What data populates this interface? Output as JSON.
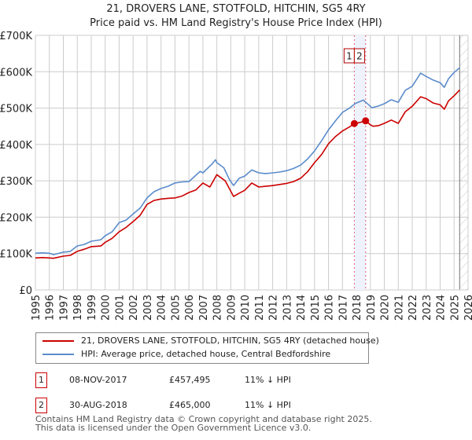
{
  "header": {
    "title": "21, DROVERS LANE, STOTFOLD, HITCHIN, SG5 4RY",
    "subtitle": "Price paid vs. HM Land Registry's House Price Index (HPI)"
  },
  "colors": {
    "property": "#cc0000",
    "hpi": "#5b8ccc",
    "sale_band": "#eef3fb",
    "sale_line": "#e06070",
    "grid": "#cccccc"
  },
  "chart_data": {
    "type": "line",
    "title": "21, DROVERS LANE, STOTFOLD, HITCHIN, SG5 4RY",
    "subtitle": "Price paid vs. HM Land Registry's House Price Index (HPI)",
    "xlabel": "",
    "ylabel": "",
    "xlim": [
      1995,
      2026
    ],
    "ylim": [
      0,
      700000
    ],
    "grid": true,
    "legend_position": "below",
    "x_ticks": [
      "1995",
      "1996",
      "1997",
      "1998",
      "1999",
      "2000",
      "2001",
      "2002",
      "2003",
      "2004",
      "2005",
      "2006",
      "2007",
      "2008",
      "2009",
      "2010",
      "2011",
      "2012",
      "2013",
      "2014",
      "2015",
      "2016",
      "2017",
      "2018",
      "2019",
      "2020",
      "2021",
      "2022",
      "2023",
      "2024",
      "2025",
      "2026"
    ],
    "y_ticks": [
      {
        "value": 0,
        "label": "£0"
      },
      {
        "value": 100000,
        "label": "£100K"
      },
      {
        "value": 200000,
        "label": "£200K"
      },
      {
        "value": 300000,
        "label": "£300K"
      },
      {
        "value": 400000,
        "label": "£400K"
      },
      {
        "value": 500000,
        "label": "£500K"
      },
      {
        "value": 600000,
        "label": "£600K"
      },
      {
        "value": 700000,
        "label": "£700K"
      }
    ],
    "data_end": 2025.4,
    "series": [
      {
        "name": "21, DROVERS LANE, STOTFOLD, HITCHIN, SG5 4RY (detached house)",
        "color": "#cc0000",
        "points": [
          [
            1995.0,
            88000
          ],
          [
            1995.5,
            89000
          ],
          [
            1996.0,
            88000
          ],
          [
            1996.3,
            87000
          ],
          [
            1997.0,
            93000
          ],
          [
            1997.5,
            95000
          ],
          [
            1998.0,
            106000
          ],
          [
            1998.5,
            112000
          ],
          [
            1999.0,
            119000
          ],
          [
            1999.7,
            121000
          ],
          [
            2000.0,
            131000
          ],
          [
            2000.5,
            142000
          ],
          [
            2001.0,
            160000
          ],
          [
            2001.5,
            172000
          ],
          [
            2002.0,
            188000
          ],
          [
            2002.5,
            205000
          ],
          [
            2003.0,
            235000
          ],
          [
            2003.5,
            246000
          ],
          [
            2004.0,
            250000
          ],
          [
            2004.5,
            252000
          ],
          [
            2005.0,
            253000
          ],
          [
            2005.5,
            258000
          ],
          [
            2006.0,
            268000
          ],
          [
            2006.5,
            275000
          ],
          [
            2007.0,
            294000
          ],
          [
            2007.5,
            283000
          ],
          [
            2008.0,
            317000
          ],
          [
            2008.6,
            300000
          ],
          [
            2009.2,
            257000
          ],
          [
            2009.6,
            266000
          ],
          [
            2010.0,
            274000
          ],
          [
            2010.5,
            294000
          ],
          [
            2011.0,
            283000
          ],
          [
            2011.5,
            285000
          ],
          [
            2012.0,
            287000
          ],
          [
            2012.5,
            290000
          ],
          [
            2013.0,
            293000
          ],
          [
            2013.5,
            298000
          ],
          [
            2014.0,
            307000
          ],
          [
            2014.5,
            325000
          ],
          [
            2015.0,
            350000
          ],
          [
            2015.5,
            372000
          ],
          [
            2016.0,
            402000
          ],
          [
            2016.5,
            422000
          ],
          [
            2017.0,
            437000
          ],
          [
            2017.5,
            448000
          ],
          [
            2017.85,
            457495
          ],
          [
            2018.2,
            460000
          ],
          [
            2018.66,
            465000
          ],
          [
            2019.0,
            454000
          ],
          [
            2019.2,
            450000
          ],
          [
            2019.6,
            452000
          ],
          [
            2020.0,
            458000
          ],
          [
            2020.5,
            467000
          ],
          [
            2021.0,
            458000
          ],
          [
            2021.5,
            490000
          ],
          [
            2022.0,
            505000
          ],
          [
            2022.6,
            531000
          ],
          [
            2023.0,
            526000
          ],
          [
            2023.5,
            514000
          ],
          [
            2024.0,
            509000
          ],
          [
            2024.3,
            497000
          ],
          [
            2024.6,
            520000
          ],
          [
            2025.0,
            534000
          ],
          [
            2025.4,
            550000
          ]
        ]
      },
      {
        "name": "HPI: Average price, detached house, Central Bedfordshire",
        "color": "#5b8ccc",
        "points": [
          [
            1995.0,
            101000
          ],
          [
            1995.5,
            102000
          ],
          [
            1996.0,
            101000
          ],
          [
            1996.3,
            97000
          ],
          [
            1997.0,
            104000
          ],
          [
            1997.5,
            106000
          ],
          [
            1998.0,
            121000
          ],
          [
            1998.5,
            125000
          ],
          [
            1999.0,
            134000
          ],
          [
            1999.7,
            138000
          ],
          [
            2000.0,
            149000
          ],
          [
            2000.5,
            160000
          ],
          [
            2001.0,
            185000
          ],
          [
            2001.5,
            192000
          ],
          [
            2002.0,
            209000
          ],
          [
            2002.5,
            225000
          ],
          [
            2003.0,
            253000
          ],
          [
            2003.5,
            270000
          ],
          [
            2004.0,
            279000
          ],
          [
            2004.5,
            285000
          ],
          [
            2005.0,
            294000
          ],
          [
            2005.5,
            297000
          ],
          [
            2006.0,
            298000
          ],
          [
            2006.8,
            326000
          ],
          [
            2007.0,
            322000
          ],
          [
            2007.7,
            348000
          ],
          [
            2007.9,
            358000
          ],
          [
            2008.0,
            350000
          ],
          [
            2008.5,
            336000
          ],
          [
            2008.9,
            304000
          ],
          [
            2009.2,
            287000
          ],
          [
            2009.6,
            307000
          ],
          [
            2010.0,
            313000
          ],
          [
            2010.5,
            330000
          ],
          [
            2011.0,
            322000
          ],
          [
            2011.5,
            320000
          ],
          [
            2012.0,
            322000
          ],
          [
            2012.5,
            324000
          ],
          [
            2013.0,
            328000
          ],
          [
            2013.5,
            334000
          ],
          [
            2014.0,
            343000
          ],
          [
            2014.5,
            360000
          ],
          [
            2015.0,
            382000
          ],
          [
            2015.5,
            410000
          ],
          [
            2016.0,
            440000
          ],
          [
            2016.5,
            465000
          ],
          [
            2017.0,
            488000
          ],
          [
            2017.5,
            500000
          ],
          [
            2017.9,
            512000
          ],
          [
            2018.0,
            514000
          ],
          [
            2018.5,
            522000
          ],
          [
            2019.0,
            505000
          ],
          [
            2019.1,
            501000
          ],
          [
            2019.6,
            506000
          ],
          [
            2020.0,
            512000
          ],
          [
            2020.5,
            523000
          ],
          [
            2021.0,
            516000
          ],
          [
            2021.5,
            549000
          ],
          [
            2022.0,
            560000
          ],
          [
            2022.6,
            596000
          ],
          [
            2023.0,
            587000
          ],
          [
            2023.5,
            577000
          ],
          [
            2024.0,
            570000
          ],
          [
            2024.3,
            557000
          ],
          [
            2024.6,
            581000
          ],
          [
            2025.0,
            598000
          ],
          [
            2025.4,
            611000
          ]
        ]
      }
    ],
    "sales": [
      {
        "id": "1",
        "x": 2017.85,
        "value": 457495
      },
      {
        "id": "2",
        "x": 2018.66,
        "value": 465000
      }
    ]
  },
  "legend": {
    "items": [
      {
        "label": "21, DROVERS LANE, STOTFOLD, HITCHIN, SG5 4RY (detached house)",
        "color": "#cc0000"
      },
      {
        "label": "HPI: Average price, detached house, Central Bedfordshire",
        "color": "#5b8ccc"
      }
    ]
  },
  "sales_table": [
    {
      "id": "1",
      "date": "08-NOV-2017",
      "price": "£457,495",
      "delta": "11% ↓ HPI"
    },
    {
      "id": "2",
      "date": "30-AUG-2018",
      "price": "£465,000",
      "delta": "11% ↓ HPI"
    }
  ],
  "footer": {
    "line1": "Contains HM Land Registry data © Crown copyright and database right 2025.",
    "line2": "This data is licensed under the Open Government Licence v3.0."
  }
}
